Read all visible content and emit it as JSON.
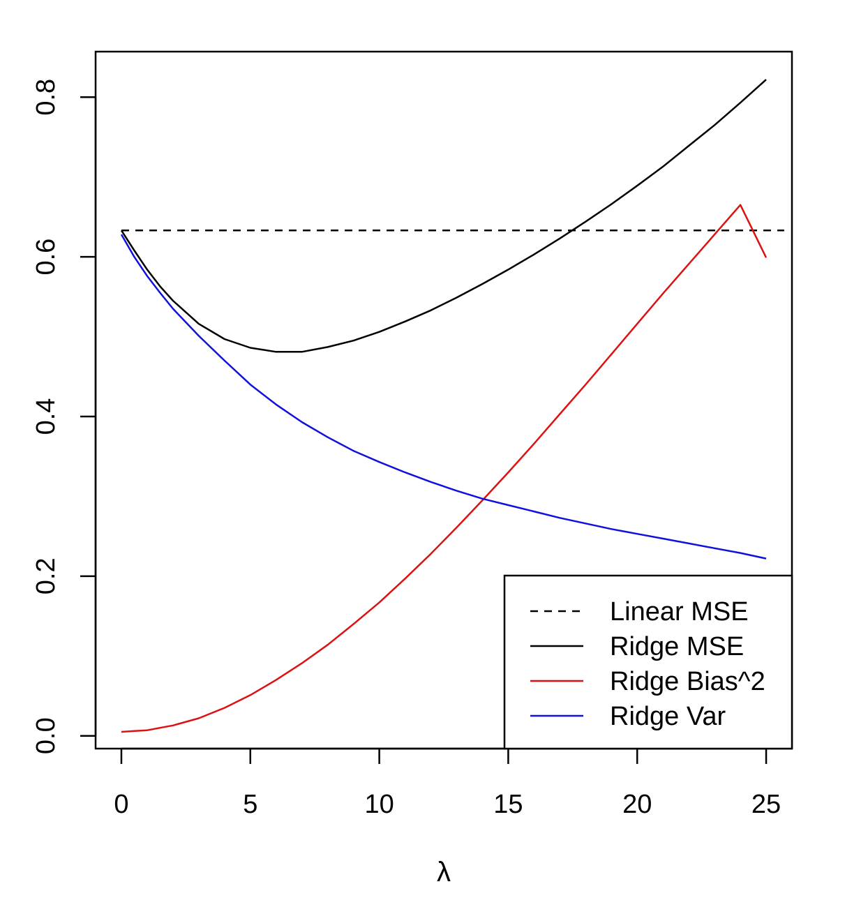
{
  "chart_data": {
    "type": "line",
    "title": "",
    "xlabel": "λ",
    "ylabel": "",
    "xlim": [
      -1,
      26
    ],
    "ylim": [
      -0.016,
      0.857
    ],
    "x_ticks": [
      "0",
      "5",
      "10",
      "15",
      "20",
      "25"
    ],
    "x_tick_values": [
      0,
      5,
      10,
      15,
      20,
      25
    ],
    "y_ticks": [
      "0.0",
      "0.2",
      "0.4",
      "0.6",
      "0.8"
    ],
    "y_tick_values": [
      0.0,
      0.2,
      0.4,
      0.6,
      0.8
    ],
    "grid": false,
    "legend_position": "bottom-right",
    "series": [
      {
        "name": "Linear MSE",
        "color": "#000000",
        "dash": "dashed",
        "x": [
          0,
          25.7
        ],
        "y": [
          0.633,
          0.633
        ]
      },
      {
        "name": "Ridge MSE",
        "color": "#000000",
        "dash": "solid",
        "x": [
          0,
          0.5,
          1,
          1.5,
          2,
          3,
          4,
          5,
          6,
          7,
          8,
          9,
          10,
          11,
          12,
          13,
          14,
          15,
          16,
          17,
          18,
          19,
          20,
          21,
          22,
          23,
          24,
          25
        ],
        "y": [
          0.633,
          0.608,
          0.584,
          0.563,
          0.545,
          0.516,
          0.497,
          0.486,
          0.481,
          0.481,
          0.487,
          0.495,
          0.506,
          0.519,
          0.533,
          0.549,
          0.566,
          0.584,
          0.603,
          0.623,
          0.644,
          0.666,
          0.689,
          0.713,
          0.739,
          0.765,
          0.793,
          0.822
        ]
      },
      {
        "name": "Ridge Bias^2",
        "color": "#dd1111",
        "dash": "solid",
        "x": [
          0,
          0.5,
          1,
          1.5,
          2,
          3,
          4,
          5,
          6,
          7,
          8,
          9,
          10,
          11,
          12,
          13,
          14,
          15,
          16,
          17,
          18,
          19,
          20,
          21,
          22,
          23,
          24,
          25
        ],
        "y": [
          0.005,
          0.006,
          0.007,
          0.01,
          0.013,
          0.022,
          0.035,
          0.051,
          0.07,
          0.091,
          0.114,
          0.14,
          0.167,
          0.197,
          0.228,
          0.261,
          0.295,
          0.33,
          0.366,
          0.403,
          0.44,
          0.478,
          0.516,
          0.554,
          0.591,
          0.628,
          0.665,
          0.599
        ]
      },
      {
        "name": "Ridge Var",
        "color": "#1111dd",
        "dash": "solid",
        "x": [
          0,
          0.5,
          1,
          1.5,
          2,
          3,
          4,
          5,
          6,
          7,
          8,
          9,
          10,
          11,
          12,
          13,
          14,
          15,
          16,
          17,
          18,
          19,
          20,
          21,
          22,
          23,
          24,
          25
        ],
        "y": [
          0.628,
          0.6,
          0.576,
          0.555,
          0.535,
          0.501,
          0.47,
          0.44,
          0.415,
          0.393,
          0.374,
          0.357,
          0.343,
          0.33,
          0.318,
          0.307,
          0.297,
          0.289,
          0.281,
          0.273,
          0.266,
          0.259,
          0.253,
          0.247,
          0.241,
          0.235,
          0.229,
          0.222
        ]
      }
    ]
  }
}
